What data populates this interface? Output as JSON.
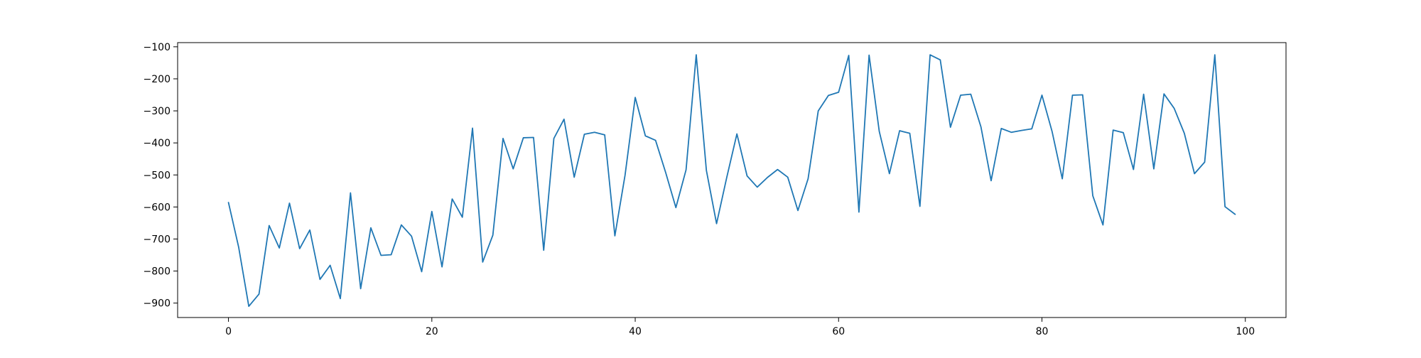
{
  "chart_data": {
    "type": "line",
    "title": "",
    "xlabel": "",
    "ylabel": "",
    "xlim": [
      -5,
      104
    ],
    "ylim": [
      -945,
      -87
    ],
    "xticks": [
      0,
      20,
      40,
      60,
      80,
      100
    ],
    "yticks": [
      -900,
      -800,
      -700,
      -600,
      -500,
      -400,
      -300,
      -200,
      -100
    ],
    "grid": false,
    "series": [
      {
        "color": "#1f77b4",
        "x": [
          0,
          1,
          2,
          3,
          4,
          5,
          6,
          7,
          8,
          9,
          10,
          11,
          12,
          13,
          14,
          15,
          16,
          17,
          18,
          19,
          20,
          21,
          22,
          23,
          24,
          25,
          26,
          27,
          28,
          29,
          30,
          31,
          32,
          33,
          34,
          35,
          36,
          37,
          38,
          39,
          40,
          41,
          42,
          43,
          44,
          45,
          46,
          47,
          48,
          49,
          50,
          51,
          52,
          53,
          54,
          55,
          56,
          57,
          58,
          59,
          60,
          61,
          62,
          63,
          64,
          65,
          66,
          67,
          68,
          69,
          70,
          71,
          72,
          73,
          74,
          75,
          76,
          77,
          78,
          79,
          80,
          81,
          82,
          83,
          84,
          85,
          86,
          87,
          88,
          89,
          90,
          91,
          92,
          93,
          94,
          95,
          96,
          97,
          98,
          99
        ],
        "y": [
          -586,
          -725,
          -910,
          -872,
          -658,
          -728,
          -588,
          -730,
          -672,
          -826,
          -782,
          -886,
          -556,
          -855,
          -665,
          -751,
          -749,
          -656,
          -691,
          -802,
          -614,
          -787,
          -575,
          -632,
          -354,
          -772,
          -688,
          -386,
          -481,
          -384,
          -383,
          -735,
          -386,
          -326,
          -507,
          -373,
          -367,
          -375,
          -690,
          -501,
          -258,
          -378,
          -392,
          -493,
          -602,
          -484,
          -125,
          -486,
          -652,
          -508,
          -372,
          -503,
          -538,
          -508,
          -483,
          -507,
          -611,
          -512,
          -300,
          -252,
          -242,
          -127,
          -616,
          -126,
          -364,
          -496,
          -362,
          -370,
          -598,
          -125,
          -141,
          -351,
          -251,
          -248,
          -350,
          -518,
          -355,
          -367,
          -361,
          -356,
          -251,
          -365,
          -512,
          -251,
          -250,
          -565,
          -656,
          -360,
          -368,
          -483,
          -248,
          -481,
          -247,
          -292,
          -370,
          -496,
          -460,
          -125,
          -599,
          -623
        ]
      }
    ]
  }
}
